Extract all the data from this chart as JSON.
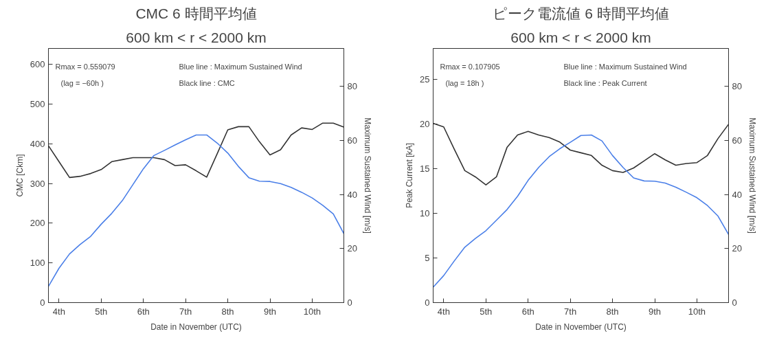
{
  "chart_data": [
    {
      "type": "line",
      "title": "CMC 6 時間平均値",
      "subtitle": "600 km < r < 2000 km",
      "xlabel": "Date in November (UTC)",
      "ylabel": "CMC [Ckm]",
      "y2label": "Maximum Sustained Wind [m/s]",
      "annotations": [
        "Rmax = 0.559079",
        "(lag = −60h )",
        "Blue line : Maximum Sustained Wind",
        "Black line : CMC"
      ],
      "x": [
        3.75,
        4.0,
        4.25,
        4.5,
        4.75,
        5.0,
        5.25,
        5.5,
        5.75,
        6.0,
        6.25,
        6.5,
        6.75,
        7.0,
        7.25,
        7.5,
        7.75,
        8.0,
        8.25,
        8.5,
        8.75,
        9.0,
        9.25,
        9.5,
        9.75,
        10.0,
        10.25,
        10.5,
        10.75
      ],
      "series": [
        {
          "color": "#333333",
          "values": [
            395,
            355,
            315,
            318,
            325,
            335,
            355,
            360,
            365,
            365,
            365,
            360,
            345,
            347,
            332,
            316,
            375,
            435,
            443,
            443,
            405,
            372,
            385,
            422,
            440,
            436,
            452,
            452,
            442
          ]
        },
        {
          "color": "#4a7fe8",
          "axis": "y2",
          "values": [
            6,
            12.7,
            18,
            21.5,
            24.5,
            29,
            33,
            37.7,
            43.6,
            49.5,
            54.4,
            56.3,
            58.3,
            60.2,
            62,
            62,
            59,
            55.3,
            50.4,
            46.2,
            44.9,
            44.8,
            44,
            42.6,
            40.8,
            38.7,
            36,
            32.8,
            25.5
          ]
        }
      ],
      "xlim": [
        3.75,
        10.75
      ],
      "xticks": [
        {
          "value": 4,
          "label": "4th"
        },
        {
          "value": 5,
          "label": "5th"
        },
        {
          "value": 6,
          "label": "6th"
        },
        {
          "value": 7,
          "label": "7th"
        },
        {
          "value": 8,
          "label": "8th"
        },
        {
          "value": 9,
          "label": "9th"
        },
        {
          "value": 10,
          "label": "10th"
        }
      ],
      "ylim": [
        0,
        640
      ],
      "yticks": [
        0,
        100,
        200,
        300,
        400,
        500,
        600
      ],
      "y2lim": [
        0,
        94
      ],
      "y2ticks": [
        0,
        20,
        40,
        60,
        80
      ],
      "grid": false
    },
    {
      "type": "line",
      "title": "ピーク電流値 6 時間平均値",
      "subtitle": "600 km < r < 2000 km",
      "xlabel": "Date in November (UTC)",
      "ylabel": "Peak Current [kA]",
      "y2label": "Maximum Sustained Wind [m/s]",
      "annotations": [
        "Rmax = 0.107905",
        "(lag = 18h )",
        "Blue line : Maximum Sustained Wind",
        "Black line : Peak Current"
      ],
      "x": [
        3.75,
        4.0,
        4.25,
        4.5,
        4.75,
        5.0,
        5.25,
        5.5,
        5.75,
        6.0,
        6.25,
        6.5,
        6.75,
        7.0,
        7.25,
        7.5,
        7.75,
        8.0,
        8.25,
        8.5,
        8.75,
        9.0,
        9.25,
        9.5,
        9.75,
        10.0,
        10.25,
        10.5,
        10.75
      ],
      "series": [
        {
          "color": "#333333",
          "values": [
            20.1,
            19.7,
            17.2,
            14.8,
            14.1,
            13.2,
            14.1,
            17.4,
            18.8,
            19.2,
            18.8,
            18.5,
            18.0,
            17.1,
            16.8,
            16.5,
            15.4,
            14.8,
            14.6,
            15.1,
            15.9,
            16.7,
            16.0,
            15.4,
            15.6,
            15.7,
            16.5,
            18.4,
            20.0
          ]
        },
        {
          "color": "#4a7fe8",
          "axis": "y2",
          "values": [
            5.7,
            10,
            15.4,
            20.5,
            23.7,
            26.6,
            30.5,
            34.4,
            39.3,
            45.2,
            50,
            54,
            56.9,
            59.3,
            61.8,
            62,
            59.8,
            54.4,
            50,
            46.1,
            45,
            44.9,
            44.2,
            42.7,
            40.8,
            38.8,
            35.9,
            32,
            25.2
          ]
        }
      ],
      "xlim": [
        3.75,
        10.75
      ],
      "xticks": [
        {
          "value": 4,
          "label": "4th"
        },
        {
          "value": 5,
          "label": "5th"
        },
        {
          "value": 6,
          "label": "6th"
        },
        {
          "value": 7,
          "label": "7th"
        },
        {
          "value": 8,
          "label": "8th"
        },
        {
          "value": 9,
          "label": "9th"
        },
        {
          "value": 10,
          "label": "10th"
        }
      ],
      "ylim": [
        0,
        28.5
      ],
      "yticks": [
        0,
        5,
        10,
        15,
        20,
        25
      ],
      "y2lim": [
        0,
        94
      ],
      "y2ticks": [
        0,
        20,
        40,
        60,
        80
      ],
      "grid": false
    }
  ]
}
